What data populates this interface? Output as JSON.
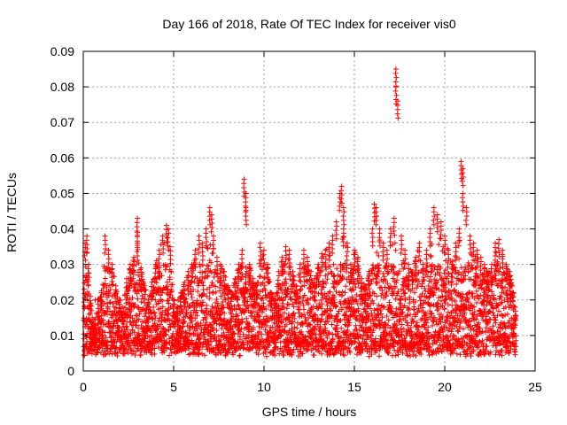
{
  "chart_data": {
    "type": "scatter",
    "title": "Day 166 of 2018, Rate Of TEC Index for receiver vis0",
    "xlabel": "GPS time / hours",
    "ylabel": "ROTI / TECUs",
    "xlim": [
      0,
      25
    ],
    "ylim": [
      0,
      0.09
    ],
    "xticks": [
      0,
      5,
      10,
      15,
      20,
      25
    ],
    "xtick_labels": [
      "0",
      "5",
      "10",
      "15",
      "20",
      "25"
    ],
    "yticks": [
      0,
      0.01,
      0.02,
      0.03,
      0.04,
      0.05,
      0.06,
      0.07,
      0.08,
      0.09
    ],
    "ytick_labels": [
      "0",
      "0.01",
      "0.02",
      "0.03",
      "0.04",
      "0.05",
      "0.06",
      "0.07",
      "0.08",
      "0.09"
    ],
    "grid": true,
    "marker": "plus",
    "color": "#ff0000",
    "series": [
      {
        "name": "vis0",
        "x": [
          0.05,
          0.1,
          0.2,
          0.3,
          0.4,
          0.5,
          0.6,
          0.8,
          1.0,
          1.2,
          1.4,
          1.6,
          1.8,
          2.0,
          2.2,
          2.4,
          2.6,
          2.8,
          3.0,
          3.0,
          3.0,
          3.2,
          3.4,
          3.6,
          3.8,
          4.0,
          4.2,
          4.4,
          4.6,
          4.7,
          4.8,
          5.0,
          5.2,
          5.4,
          5.6,
          5.8,
          6.0,
          6.2,
          6.4,
          6.6,
          6.8,
          7.0,
          7.1,
          7.2,
          7.4,
          7.6,
          7.8,
          8.0,
          8.2,
          8.4,
          8.6,
          8.8,
          8.9,
          9.0,
          9.0,
          9.2,
          9.4,
          9.6,
          9.8,
          10.0,
          10.2,
          10.4,
          10.6,
          10.8,
          11.0,
          11.2,
          11.4,
          11.6,
          11.8,
          12.0,
          12.2,
          12.4,
          12.6,
          12.8,
          13.0,
          13.2,
          13.4,
          13.6,
          13.8,
          14.0,
          14.2,
          14.3,
          14.4,
          14.4,
          14.6,
          14.8,
          15.0,
          15.2,
          15.4,
          15.6,
          15.8,
          16.0,
          16.1,
          16.2,
          16.4,
          16.6,
          16.8,
          17.0,
          17.2,
          17.3,
          17.3,
          17.4,
          17.6,
          17.8,
          18.0,
          18.2,
          18.4,
          18.6,
          18.8,
          19.0,
          19.2,
          19.4,
          19.6,
          19.8,
          20.0,
          20.2,
          20.4,
          20.6,
          20.8,
          20.9,
          21.0,
          21.0,
          21.2,
          21.4,
          21.6,
          21.8,
          22.0,
          22.2,
          22.4,
          22.6,
          22.8,
          23.0,
          23.2,
          23.4,
          23.6,
          23.8,
          23.9
        ],
        "y": [
          0.023,
          0.036,
          0.038,
          0.03,
          0.021,
          0.015,
          0.012,
          0.02,
          0.022,
          0.038,
          0.034,
          0.03,
          0.024,
          0.02,
          0.018,
          0.026,
          0.03,
          0.032,
          0.043,
          0.039,
          0.036,
          0.029,
          0.024,
          0.02,
          0.025,
          0.03,
          0.034,
          0.038,
          0.041,
          0.04,
          0.035,
          0.02,
          0.018,
          0.022,
          0.025,
          0.028,
          0.03,
          0.034,
          0.038,
          0.036,
          0.04,
          0.046,
          0.044,
          0.038,
          0.032,
          0.03,
          0.028,
          0.024,
          0.022,
          0.026,
          0.03,
          0.034,
          0.054,
          0.05,
          0.046,
          0.03,
          0.026,
          0.024,
          0.036,
          0.034,
          0.03,
          0.022,
          0.02,
          0.028,
          0.032,
          0.035,
          0.034,
          0.028,
          0.024,
          0.03,
          0.034,
          0.032,
          0.028,
          0.026,
          0.03,
          0.033,
          0.034,
          0.036,
          0.038,
          0.042,
          0.05,
          0.052,
          0.046,
          0.04,
          0.036,
          0.03,
          0.034,
          0.032,
          0.026,
          0.024,
          0.028,
          0.04,
          0.047,
          0.046,
          0.04,
          0.036,
          0.034,
          0.04,
          0.043,
          0.085,
          0.08,
          0.076,
          0.038,
          0.034,
          0.03,
          0.028,
          0.032,
          0.036,
          0.03,
          0.034,
          0.04,
          0.046,
          0.044,
          0.042,
          0.038,
          0.034,
          0.03,
          0.036,
          0.04,
          0.059,
          0.057,
          0.05,
          0.046,
          0.038,
          0.036,
          0.034,
          0.032,
          0.03,
          0.028,
          0.03,
          0.036,
          0.037,
          0.034,
          0.03,
          0.028,
          0.022,
          0.018
        ]
      }
    ]
  }
}
